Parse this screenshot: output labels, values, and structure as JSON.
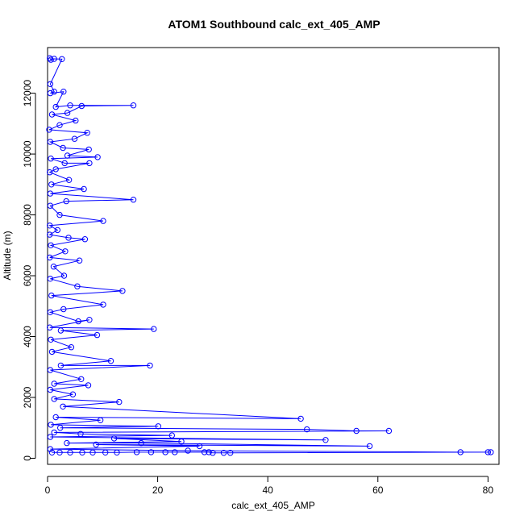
{
  "chart_data": {
    "type": "line",
    "title": "ATOM1 Southbound calc_ext_405_AMP",
    "xlabel": "calc_ext_405_AMP",
    "ylabel": "Altitude (m)",
    "xlim": [
      0,
      82
    ],
    "ylim": [
      -200,
      13500
    ],
    "xticks": [
      0,
      20,
      40,
      60,
      80
    ],
    "yticks": [
      0,
      2000,
      4000,
      6000,
      8000,
      10000,
      12000
    ],
    "grid": false,
    "color": "#0000ff",
    "marker": "open-circle",
    "series": [
      {
        "values": [
          [
            0.4,
            13150
          ],
          [
            0.6,
            13100
          ],
          [
            1.2,
            13130
          ],
          [
            2.6,
            13120
          ],
          [
            0.5,
            12300
          ],
          [
            1.2,
            12050
          ],
          [
            0.5,
            12000
          ],
          [
            2.9,
            12050
          ],
          [
            1.5,
            11550
          ],
          [
            4.1,
            11600
          ],
          [
            15.6,
            11600
          ],
          [
            6.2,
            11580
          ],
          [
            3.6,
            11350
          ],
          [
            0.8,
            11300
          ],
          [
            5.1,
            11100
          ],
          [
            2.2,
            10950
          ],
          [
            0.3,
            10800
          ],
          [
            7.2,
            10700
          ],
          [
            4.9,
            10500
          ],
          [
            0.5,
            10400
          ],
          [
            2.8,
            10200
          ],
          [
            7.5,
            10150
          ],
          [
            3.6,
            9950
          ],
          [
            9.1,
            9900
          ],
          [
            0.6,
            9850
          ],
          [
            3.1,
            9700
          ],
          [
            7.6,
            9700
          ],
          [
            1.5,
            9500
          ],
          [
            0.4,
            9400
          ],
          [
            3.9,
            9150
          ],
          [
            0.7,
            9000
          ],
          [
            6.6,
            8850
          ],
          [
            0.5,
            8700
          ],
          [
            15.6,
            8500
          ],
          [
            3.4,
            8450
          ],
          [
            0.5,
            8300
          ],
          [
            2.2,
            8000
          ],
          [
            10.1,
            7800
          ],
          [
            0.4,
            7650
          ],
          [
            1.8,
            7500
          ],
          [
            0.4,
            7350
          ],
          [
            3.8,
            7250
          ],
          [
            6.8,
            7200
          ],
          [
            0.6,
            7000
          ],
          [
            3.2,
            6800
          ],
          [
            0.4,
            6600
          ],
          [
            5.8,
            6500
          ],
          [
            1.1,
            6300
          ],
          [
            3.0,
            6000
          ],
          [
            0.5,
            5900
          ],
          [
            5.4,
            5650
          ],
          [
            13.6,
            5500
          ],
          [
            0.7,
            5350
          ],
          [
            10.1,
            5050
          ],
          [
            2.9,
            4900
          ],
          [
            0.5,
            4800
          ],
          [
            5.6,
            4500
          ],
          [
            7.6,
            4550
          ],
          [
            0.4,
            4300
          ],
          [
            19.3,
            4250
          ],
          [
            2.4,
            4200
          ],
          [
            9.0,
            4050
          ],
          [
            0.6,
            3900
          ],
          [
            4.3,
            3650
          ],
          [
            0.8,
            3500
          ],
          [
            11.5,
            3200
          ],
          [
            2.4,
            3050
          ],
          [
            18.6,
            3050
          ],
          [
            0.5,
            2900
          ],
          [
            6.1,
            2600
          ],
          [
            1.2,
            2450
          ],
          [
            7.4,
            2400
          ],
          [
            0.5,
            2250
          ],
          [
            4.6,
            2100
          ],
          [
            1.2,
            1950
          ],
          [
            13.0,
            1850
          ],
          [
            2.8,
            1700
          ],
          [
            46.0,
            1300
          ],
          [
            1.5,
            1350
          ],
          [
            9.6,
            1250
          ],
          [
            0.6,
            1100
          ],
          [
            20.1,
            1050
          ],
          [
            2.3,
            1000
          ],
          [
            47.1,
            950
          ],
          [
            56.1,
            900
          ],
          [
            62.0,
            900
          ],
          [
            1.2,
            850
          ],
          [
            6.0,
            800
          ],
          [
            22.6,
            750
          ],
          [
            0.5,
            700
          ],
          [
            50.5,
            600
          ],
          [
            12.1,
            650
          ],
          [
            24.3,
            550
          ],
          [
            3.5,
            500
          ],
          [
            17.0,
            500
          ],
          [
            58.5,
            400
          ],
          [
            8.8,
            450
          ],
          [
            27.6,
            400
          ],
          [
            0.5,
            300
          ],
          [
            25.5,
            250
          ],
          [
            75.0,
            200
          ],
          [
            80.0,
            200
          ],
          [
            80.5,
            200
          ],
          [
            33.2,
            180
          ],
          [
            32.0,
            180
          ],
          [
            30.0,
            180
          ],
          [
            29.3,
            200
          ],
          [
            28.5,
            200
          ],
          [
            23.1,
            200
          ],
          [
            21.4,
            200
          ],
          [
            18.8,
            200
          ],
          [
            16.2,
            200
          ],
          [
            12.6,
            190
          ],
          [
            10.5,
            190
          ],
          [
            8.2,
            190
          ],
          [
            6.3,
            190
          ],
          [
            4.1,
            190
          ],
          [
            2.2,
            190
          ],
          [
            0.8,
            190
          ]
        ]
      }
    ]
  }
}
